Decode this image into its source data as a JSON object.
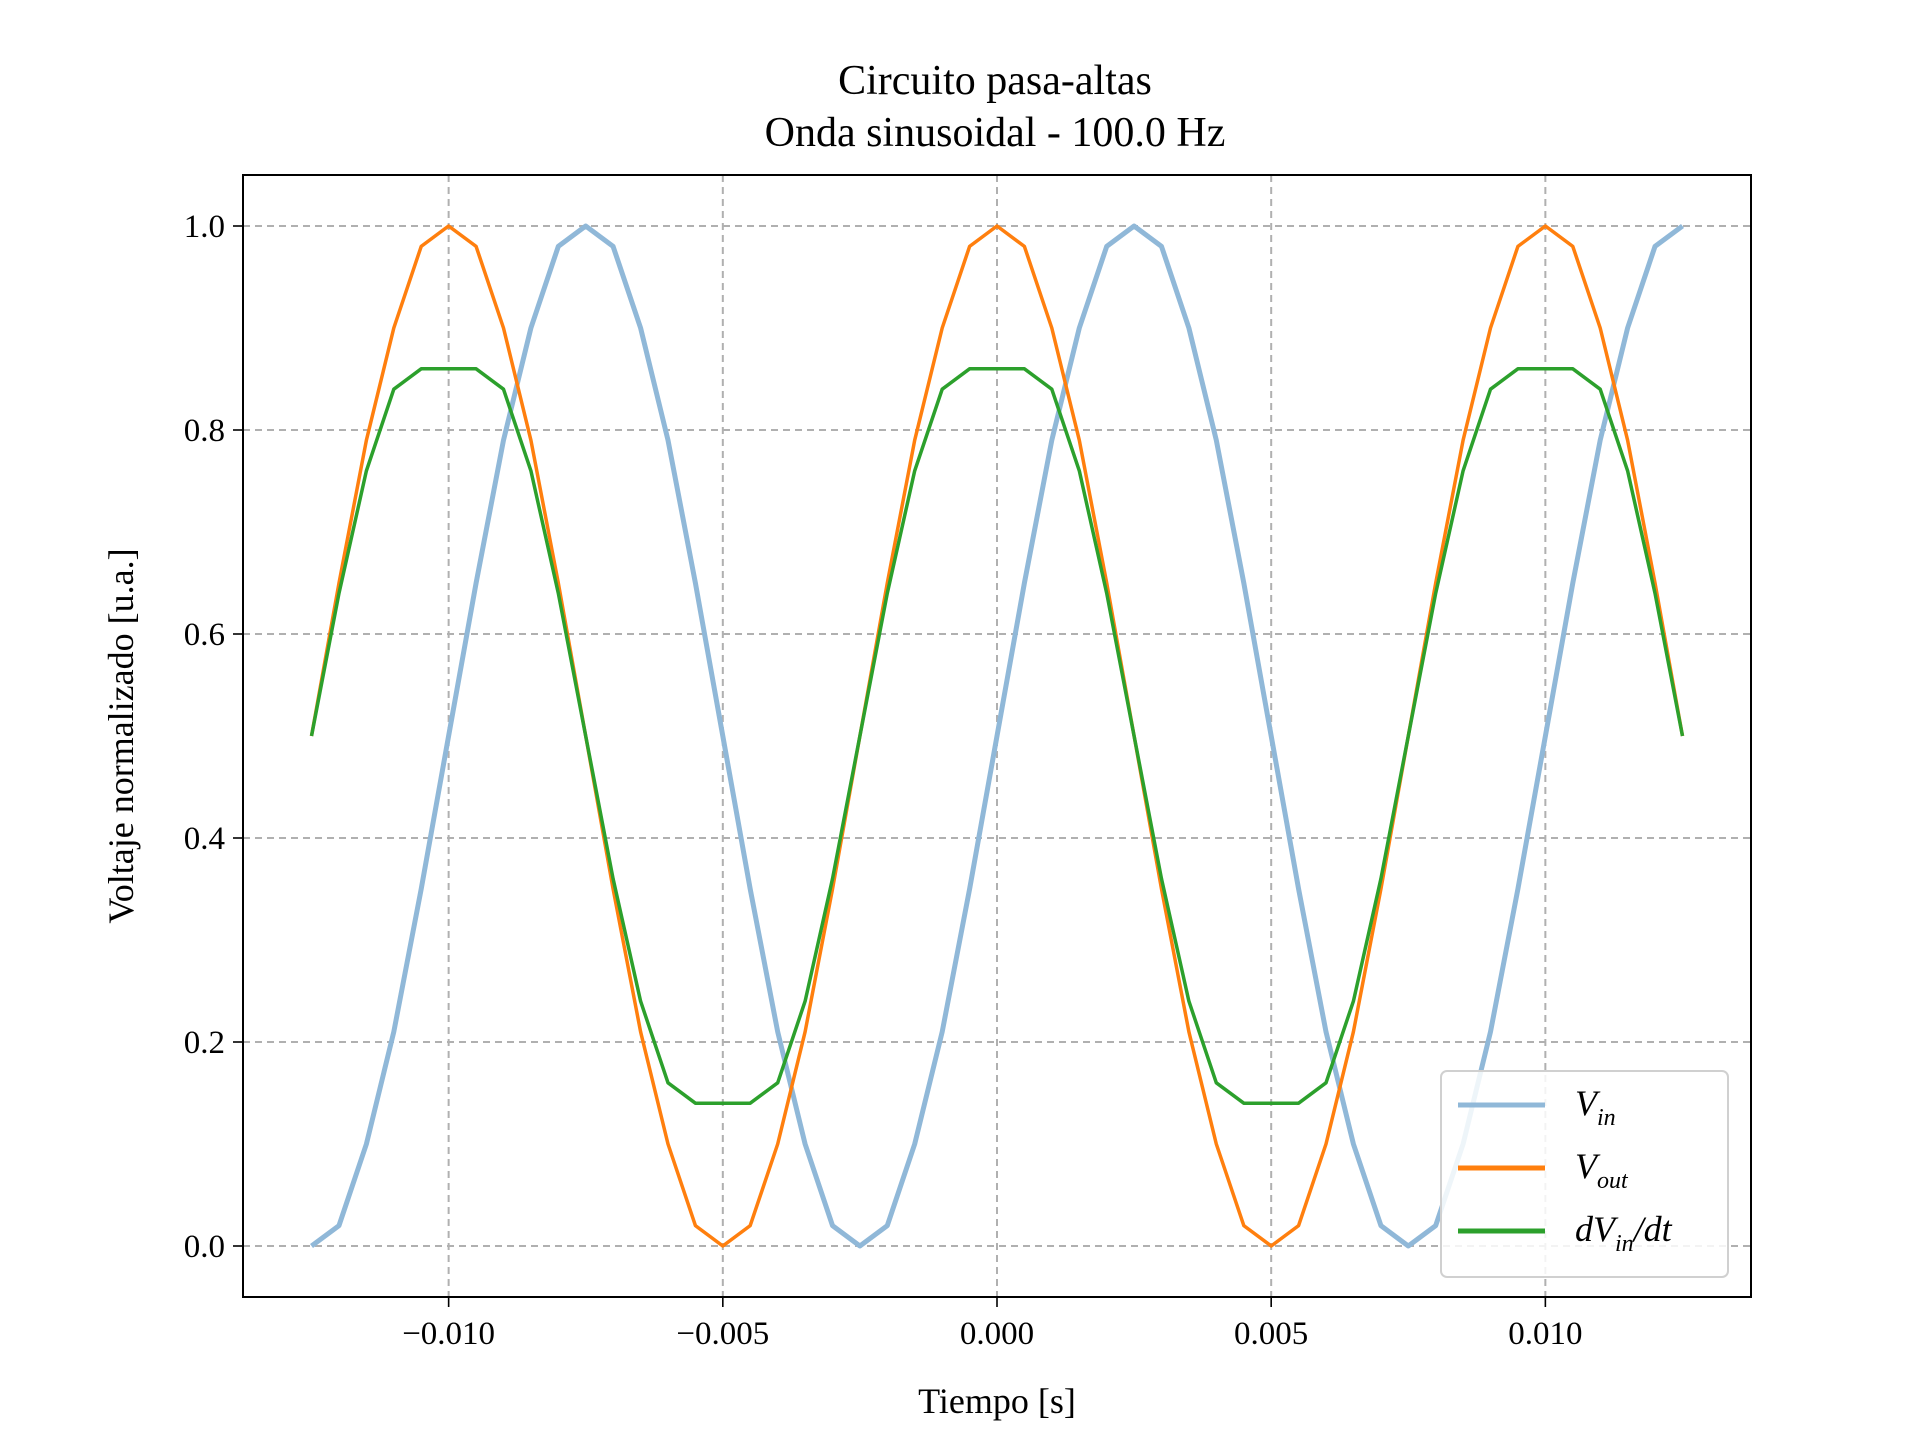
{
  "chart_data": {
    "type": "line",
    "title": "Circuito pasa-altas",
    "subtitle": "Onda sinusoidal - 100.0 Hz",
    "xlabel": "Tiempo [s]",
    "ylabel": "Voltaje normalizado [u.a.]",
    "xlim": [
      -0.01375,
      0.01375
    ],
    "ylim": [
      -0.05,
      1.05
    ],
    "grid": true,
    "legend_position": "lower-right",
    "xticks": [
      -0.01,
      -0.005,
      0.0,
      0.005,
      0.01
    ],
    "xtick_labels": [
      "−0.010",
      "−0.005",
      "0.000",
      "0.005",
      "0.010"
    ],
    "yticks": [
      0.0,
      0.2,
      0.4,
      0.6,
      0.8,
      1.0
    ],
    "ytick_labels": [
      "0.0",
      "0.2",
      "0.4",
      "0.6",
      "0.8",
      "1.0"
    ],
    "series": [
      {
        "name": "V_in",
        "legend_main": "V",
        "legend_sub": "in",
        "color": "#90b8d8",
        "x": [
          -0.0125,
          -0.012,
          -0.0115,
          -0.011,
          -0.0105,
          -0.01,
          -0.0095,
          -0.009,
          -0.0085,
          -0.008,
          -0.0075,
          -0.007,
          -0.0065,
          -0.006,
          -0.0055,
          -0.005,
          -0.0045,
          -0.004,
          -0.0035,
          -0.003,
          -0.0025,
          -0.002,
          -0.0015,
          -0.001,
          -0.0005,
          0.0,
          0.0005,
          0.001,
          0.0015,
          0.002,
          0.0025,
          0.003,
          0.0035,
          0.004,
          0.0045,
          0.005,
          0.0055,
          0.006,
          0.0065,
          0.007,
          0.0075,
          0.008,
          0.0085,
          0.009,
          0.0095,
          0.01,
          0.0105,
          0.011,
          0.0115,
          0.012,
          0.0125
        ],
        "y": [
          0.0,
          0.02,
          0.1,
          0.21,
          0.35,
          0.5,
          0.65,
          0.79,
          0.9,
          0.98,
          1.0,
          0.98,
          0.9,
          0.79,
          0.65,
          0.5,
          0.35,
          0.21,
          0.1,
          0.02,
          0.0,
          0.02,
          0.1,
          0.21,
          0.35,
          0.5,
          0.65,
          0.79,
          0.9,
          0.98,
          1.0,
          0.98,
          0.9,
          0.79,
          0.65,
          0.5,
          0.35,
          0.21,
          0.1,
          0.02,
          0.0,
          0.02,
          0.1,
          0.21,
          0.35,
          0.5,
          0.65,
          0.79,
          0.9,
          0.98,
          1.0
        ]
      },
      {
        "name": "V_out",
        "legend_main": "V",
        "legend_sub": "out",
        "color": "#ff7f0e",
        "x": [
          -0.0125,
          -0.012,
          -0.0115,
          -0.011,
          -0.0105,
          -0.01,
          -0.0095,
          -0.009,
          -0.0085,
          -0.008,
          -0.0075,
          -0.007,
          -0.0065,
          -0.006,
          -0.0055,
          -0.005,
          -0.0045,
          -0.004,
          -0.0035,
          -0.003,
          -0.0025,
          -0.002,
          -0.0015,
          -0.001,
          -0.0005,
          0.0,
          0.0005,
          0.001,
          0.0015,
          0.002,
          0.0025,
          0.003,
          0.0035,
          0.004,
          0.0045,
          0.005,
          0.0055,
          0.006,
          0.0065,
          0.007,
          0.0075,
          0.008,
          0.0085,
          0.009,
          0.0095,
          0.01,
          0.0105,
          0.011,
          0.0115,
          0.012,
          0.0125
        ],
        "y": [
          0.5,
          0.65,
          0.79,
          0.9,
          0.98,
          1.0,
          0.98,
          0.9,
          0.79,
          0.65,
          0.5,
          0.35,
          0.21,
          0.1,
          0.02,
          0.0,
          0.02,
          0.1,
          0.21,
          0.35,
          0.5,
          0.65,
          0.79,
          0.9,
          0.98,
          1.0,
          0.98,
          0.9,
          0.79,
          0.65,
          0.5,
          0.35,
          0.21,
          0.1,
          0.02,
          0.0,
          0.02,
          0.1,
          0.21,
          0.35,
          0.5,
          0.65,
          0.79,
          0.9,
          0.98,
          1.0,
          0.98,
          0.9,
          0.79,
          0.65,
          0.5
        ]
      },
      {
        "name": "dV_in/dt",
        "legend_main": "dV",
        "legend_sub": "in",
        "legend_suffix": "/dt",
        "color": "#2ca02c",
        "x": [
          -0.0125,
          -0.012,
          -0.0115,
          -0.011,
          -0.0105,
          -0.01,
          -0.0095,
          -0.009,
          -0.0085,
          -0.008,
          -0.0075,
          -0.007,
          -0.0065,
          -0.006,
          -0.0055,
          -0.005,
          -0.0045,
          -0.004,
          -0.0035,
          -0.003,
          -0.0025,
          -0.002,
          -0.0015,
          -0.001,
          -0.0005,
          0.0,
          0.0005,
          0.001,
          0.0015,
          0.002,
          0.0025,
          0.003,
          0.0035,
          0.004,
          0.0045,
          0.005,
          0.0055,
          0.006,
          0.0065,
          0.007,
          0.0075,
          0.008,
          0.0085,
          0.009,
          0.0095,
          0.01,
          0.0105,
          0.011,
          0.0115,
          0.012,
          0.0125
        ],
        "y": [
          0.5,
          0.64,
          0.76,
          0.84,
          0.86,
          0.86,
          0.86,
          0.84,
          0.76,
          0.64,
          0.5,
          0.36,
          0.24,
          0.16,
          0.14,
          0.14,
          0.14,
          0.16,
          0.24,
          0.36,
          0.5,
          0.64,
          0.76,
          0.84,
          0.86,
          0.86,
          0.86,
          0.84,
          0.76,
          0.64,
          0.5,
          0.36,
          0.24,
          0.16,
          0.14,
          0.14,
          0.14,
          0.16,
          0.24,
          0.36,
          0.5,
          0.64,
          0.76,
          0.84,
          0.86,
          0.86,
          0.86,
          0.84,
          0.76,
          0.64,
          0.5
        ]
      }
    ]
  }
}
